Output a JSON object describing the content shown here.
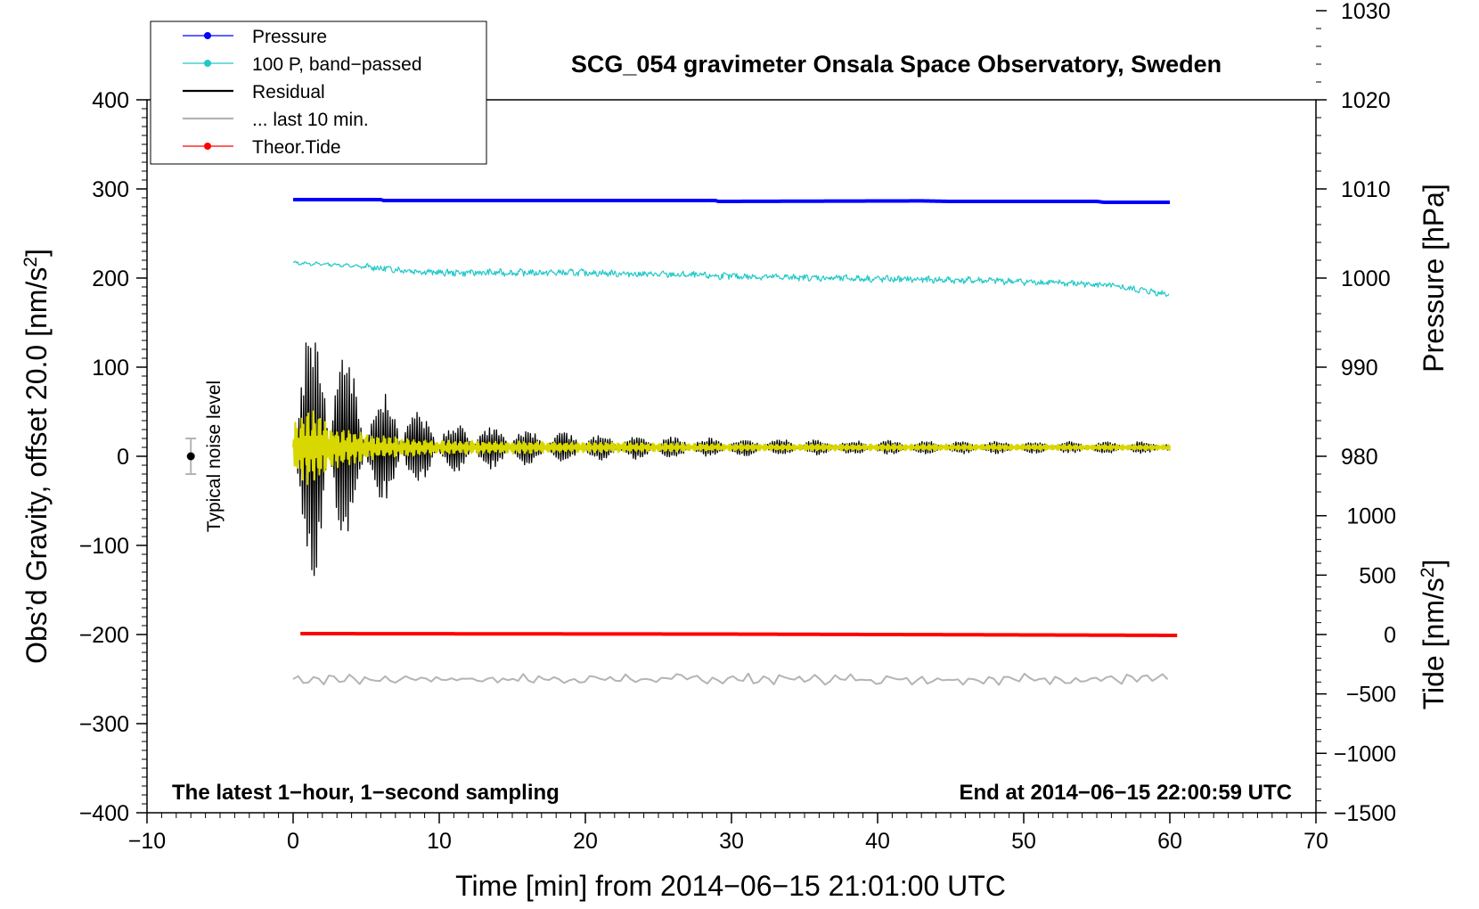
{
  "chart_data": {
    "type": "line",
    "title": "SCG_054 gravimeter Onsala Space Observatory, Sweden",
    "xlabel": "Time [min] from 2014−06−15 21:01:00 UTC",
    "ylabel": "Obs’d Gravity, offset 20.0 [nm/s",
    "ylabel_sup": "2",
    "ylabel_end": "]",
    "right_label_pressure": "Pressure [hPa]",
    "right_label_tide": "Tide [nm/s",
    "right_label_tide_sup": "2",
    "right_label_tide_end": "]",
    "note_left": "The latest 1−hour, 1−second sampling",
    "note_right": "End at 2014−06−15 22:00:59 UTC",
    "noise_label": "Typical noise level",
    "noise_level": {
      "x": -7,
      "y": 0,
      "error": 20
    },
    "xlim": [
      -10,
      70
    ],
    "ylim": [
      -400,
      400
    ],
    "x_ticks": [
      "−10",
      "0",
      "10",
      "20",
      "30",
      "40",
      "50",
      "60",
      "70"
    ],
    "x_tick_values": [
      -10,
      0,
      10,
      20,
      30,
      40,
      50,
      60,
      70
    ],
    "y_ticks": [
      "400",
      "300",
      "200",
      "100",
      "0",
      "−100",
      "−200",
      "−300",
      "−400"
    ],
    "y_tick_values": [
      400,
      300,
      200,
      100,
      0,
      -100,
      -200,
      -300,
      -400
    ],
    "pressure_axis": {
      "ticks": [
        "1030",
        "1020",
        "1010",
        "1000",
        "990",
        "980"
      ],
      "values": [
        1030,
        1020,
        1010,
        1000,
        990,
        980
      ],
      "gravity_at_1000": 200,
      "gravity_per_hpa": 10
    },
    "tide_axis": {
      "ticks": [
        "1000",
        "500",
        "0",
        "−500",
        "−1000",
        "−1500"
      ],
      "values": [
        1000,
        500,
        0,
        -500,
        -1000,
        -1500
      ],
      "gravity_at_0": -200,
      "gravity_per_unit": 0.1333
    },
    "legend": [
      {
        "label": "Pressure",
        "color": "#0000ff",
        "marker": true
      },
      {
        "label": "100 P, band−passed",
        "color": "#22c8c8",
        "marker": true
      },
      {
        "label": "Residual",
        "color": "#000000",
        "marker": false
      },
      {
        "label": "... last 10 min.",
        "color": "#b4b4b4",
        "marker": false
      },
      {
        "label": "Theor.Tide",
        "color": "#ff0000",
        "marker": true
      }
    ],
    "series": [
      {
        "name": "Pressure",
        "color": "#0000ff",
        "x": [
          0,
          6,
          6.2,
          28.9,
          29.1,
          43,
          45,
          55,
          55.5,
          60
        ],
        "values": [
          288,
          288,
          287,
          287,
          286,
          286.6,
          286,
          286,
          285,
          285
        ]
      },
      {
        "name": "100 P, band−passed",
        "color": "#22c8c8",
        "x": [
          0,
          3,
          6,
          10,
          20,
          30,
          40,
          48,
          55,
          60
        ],
        "values": [
          217,
          215,
          211,
          206,
          206,
          202,
          199,
          197,
          193,
          182
        ]
      },
      {
        "name": "Residual",
        "color": "#000000",
        "x": [
          0,
          1,
          2,
          3,
          5,
          10,
          20,
          30,
          40,
          50,
          60
        ],
        "envelope": [
          60,
          140,
          160,
          120,
          80,
          30,
          15,
          10,
          8,
          7,
          7
        ],
        "values": [
          10,
          10,
          10,
          10,
          10,
          10,
          10,
          10,
          10,
          10,
          10
        ]
      },
      {
        "name": "Residual (band−passed)",
        "color": "#d8d800",
        "x": [
          0,
          1,
          2,
          3,
          5,
          10,
          20,
          30,
          60
        ],
        "envelope": [
          30,
          45,
          35,
          25,
          15,
          8,
          6,
          4,
          3
        ],
        "values": [
          10,
          10,
          10,
          10,
          10,
          10,
          10,
          10,
          10
        ]
      },
      {
        "name": "... last 10 min.",
        "color": "#b4b4b4",
        "x": [
          0,
          60
        ],
        "values": [
          -250,
          -250
        ],
        "amplitude": 6
      },
      {
        "name": "Theor.Tide",
        "color": "#ff0000",
        "x": [
          0.5,
          29,
          47,
          60.5
        ],
        "values": [
          -199,
          -199.5,
          -200.3,
          -201
        ]
      }
    ]
  }
}
